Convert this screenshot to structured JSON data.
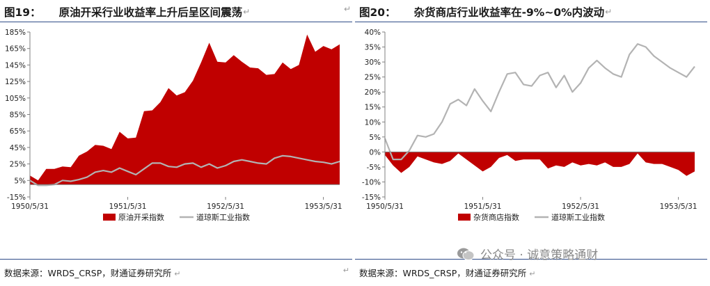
{
  "watermark": {
    "text": "公众号 · 诚意策略通财"
  },
  "charts": [
    {
      "fig_no": "图19：",
      "title": "原油开采行业收益率上升后呈区间震荡",
      "return_mark": "↵",
      "source": "数据来源：WRDS_CRSP，财通证券研究所",
      "colors": {
        "area": "#c00000",
        "line": "#b3b3b3"
      },
      "chart_data": {
        "type": "area",
        "x_tick_labels": [
          "1950/5/31",
          "1951/5/31",
          "1952/5/31",
          "1953/5/31"
        ],
        "y_tick_labels": [
          "-15%",
          "5%",
          "25%",
          "45%",
          "65%",
          "85%",
          "105%",
          "125%",
          "145%",
          "165%",
          "185%"
        ],
        "ylim": [
          -15,
          185
        ],
        "y_unit": "%",
        "grid": false,
        "legend_position": "bottom",
        "series": [
          {
            "name": "原油开采指数",
            "kind": "area",
            "values": [
              11,
              5,
              19,
              19,
              22,
              21,
              35,
              40,
              48,
              47,
              43,
              64,
              56,
              57,
              89,
              90,
              100,
              117,
              108,
              112,
              126,
              148,
              172,
              149,
              148,
              157,
              149,
              142,
              141,
              133,
              134,
              148,
              140,
              145,
              182,
              161,
              168,
              164,
              170
            ]
          },
          {
            "name": "道琼斯工业指数",
            "kind": "line",
            "values": [
              5,
              -1,
              -1,
              0,
              5,
              4,
              6,
              9,
              15,
              17,
              15,
              20,
              16,
              12,
              19,
              26,
              26,
              22,
              21,
              25,
              26,
              21,
              25,
              20,
              23,
              28,
              30,
              28,
              26,
              25,
              32,
              35,
              34,
              32,
              30,
              28,
              27,
              25,
              28
            ]
          }
        ]
      }
    },
    {
      "fig_no": "图20：",
      "title": "杂货商店行业收益率在-9%~0%内波动",
      "return_mark": "↵",
      "source": "数据来源：WRDS_CRSP，财通证券研究所",
      "colors": {
        "area": "#c00000",
        "line": "#b3b3b3"
      },
      "chart_data": {
        "type": "area",
        "x_tick_labels": [
          "1950/5/31",
          "1951/5/31",
          "1952/5/31",
          "1953/5/31"
        ],
        "y_tick_labels": [
          "-15%",
          "-10%",
          "-5%",
          "0%",
          "5%",
          "10%",
          "15%",
          "20%",
          "25%",
          "30%",
          "35%",
          "40%"
        ],
        "ylim": [
          -15,
          40
        ],
        "y_unit": "%",
        "grid": false,
        "legend_position": "bottom",
        "series": [
          {
            "name": "杂货商店指数",
            "kind": "area",
            "values": [
              -1,
              -4.5,
              -7,
              -5,
              -1.5,
              -2.5,
              -3.5,
              -4,
              -3,
              -0.5,
              -2.5,
              -4.5,
              -6.5,
              -5,
              -2,
              -1,
              -3,
              -2.5,
              -2.5,
              -2.5,
              -5.5,
              -4.5,
              -5,
              -3.5,
              -4.5,
              -4,
              -4.5,
              -3.5,
              -5,
              -5,
              -4,
              -0.5,
              -3.5,
              -4,
              -4,
              -5,
              -6,
              -8,
              -6.5
            ]
          },
          {
            "name": "道琼斯工业指数",
            "kind": "line",
            "values": [
              4.5,
              -2.5,
              -2.5,
              0.5,
              5.5,
              5,
              6,
              10,
              16,
              17.5,
              15.5,
              21,
              17,
              13.5,
              20,
              26,
              26.5,
              22.5,
              22,
              25.5,
              26.5,
              21.5,
              25.5,
              20,
              23,
              28,
              30.5,
              28,
              26,
              25,
              32.5,
              36,
              35,
              32,
              30,
              28,
              26.5,
              25,
              28.5
            ]
          }
        ]
      }
    }
  ]
}
